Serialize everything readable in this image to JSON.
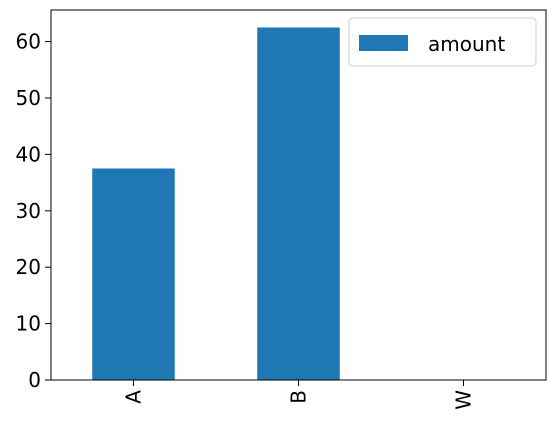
{
  "chart_data": {
    "type": "bar",
    "categories": [
      "A",
      "B",
      "W"
    ],
    "series": [
      {
        "name": "amount",
        "values": [
          37.5,
          62.5,
          0
        ]
      }
    ],
    "title": "",
    "xlabel": "",
    "ylabel": "",
    "ylim": [
      0,
      65.6
    ],
    "yticks": [
      0,
      10,
      20,
      30,
      40,
      50,
      60
    ],
    "x_tick_rotation": "vertical",
    "grid": false,
    "legend": {
      "placement": "top-right",
      "entries": [
        "amount"
      ]
    },
    "colors": {
      "bar": "#1f77b4"
    }
  }
}
